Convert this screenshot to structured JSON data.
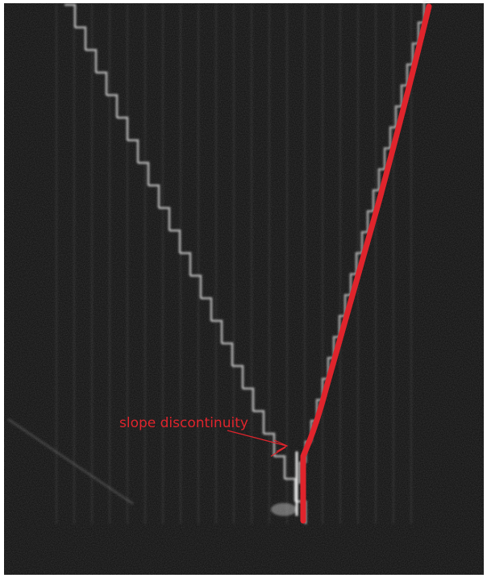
{
  "annotation": {
    "label": "slope discontinuity"
  }
}
